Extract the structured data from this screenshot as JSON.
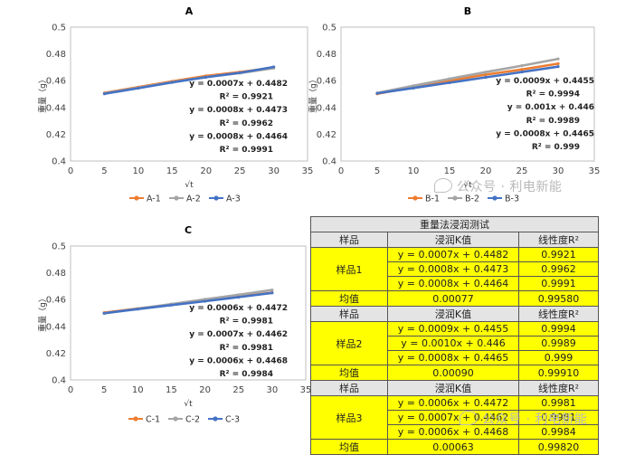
{
  "chart_data": [
    {
      "type": "scatter",
      "title": "A",
      "xlabel": "√t",
      "ylabel": "重量（g）",
      "xlim": [
        0,
        35
      ],
      "ylim": [
        0.4,
        0.5
      ],
      "xticks": [
        "0",
        "5",
        "10",
        "15",
        "20",
        "25",
        "30",
        "35"
      ],
      "yticks": [
        "0.4",
        "0.42",
        "0.44",
        "0.46",
        "0.48",
        "0.5"
      ],
      "grid": false,
      "legend": "bottom",
      "series": [
        {
          "name": "A-1",
          "color": "#ed7d31",
          "x": [
            5,
            10,
            15,
            20,
            25,
            30
          ],
          "y": [
            0.4509,
            0.4552,
            0.4595,
            0.4636,
            0.4664,
            0.4697
          ]
        },
        {
          "name": "A-2",
          "color": "#a5a5a5",
          "x": [
            5,
            10,
            15,
            20,
            25,
            30
          ],
          "y": [
            0.4505,
            0.4547,
            0.4589,
            0.4627,
            0.4657,
            0.4694
          ]
        },
        {
          "name": "A-3",
          "color": "#4472c4",
          "x": [
            5,
            10,
            15,
            20,
            25,
            30
          ],
          "y": [
            0.4502,
            0.4544,
            0.4587,
            0.4626,
            0.4659,
            0.4703
          ]
        }
      ],
      "annotations": [
        "y = 0.0007x + 0.4482",
        "R² = 0.9921",
        "y = 0.0008x + 0.4473",
        "R² = 0.9962",
        "y = 0.0008x + 0.4464",
        "R² = 0.9991"
      ]
    },
    {
      "type": "scatter",
      "title": "B",
      "xlabel": "√t",
      "ylabel": "重量（g）",
      "xlim": [
        0,
        35
      ],
      "ylim": [
        0.4,
        0.5
      ],
      "xticks": [
        "0",
        "5",
        "10",
        "15",
        "20",
        "25",
        "30",
        "35"
      ],
      "yticks": [
        "0.4",
        "0.42",
        "0.44",
        "0.46",
        "0.48",
        "0.5"
      ],
      "grid": false,
      "legend": "bottom",
      "series": [
        {
          "name": "B-1",
          "color": "#ed7d31",
          "x": [
            5,
            10,
            15,
            20,
            25,
            30
          ],
          "y": [
            0.4502,
            0.4552,
            0.46,
            0.4645,
            0.4684,
            0.4727
          ]
        },
        {
          "name": "B-2",
          "color": "#a5a5a5",
          "x": [
            5,
            10,
            15,
            20,
            25,
            30
          ],
          "y": [
            0.4508,
            0.4562,
            0.4614,
            0.4664,
            0.4712,
            0.4763
          ]
        },
        {
          "name": "B-3",
          "color": "#4472c4",
          "x": [
            5,
            10,
            15,
            20,
            25,
            30
          ],
          "y": [
            0.4506,
            0.4545,
            0.4585,
            0.4625,
            0.4665,
            0.4705
          ]
        }
      ],
      "annotations": [
        "y = 0.0009x + 0.4455",
        "R² = 0.9994",
        "y = 0.001x + 0.446",
        "R² = 0.9989",
        "y = 0.0008x + 0.4465",
        "R² = 0.999"
      ]
    },
    {
      "type": "scatter",
      "title": "C",
      "xlabel": "√t",
      "ylabel": "重量（g）",
      "xlim": [
        0,
        35
      ],
      "ylim": [
        0.4,
        0.5
      ],
      "xticks": [
        "0",
        "5",
        "10",
        "15",
        "20",
        "25",
        "30",
        "35"
      ],
      "yticks": [
        "0.4",
        "0.42",
        "0.44",
        "0.46",
        "0.48",
        "0.5"
      ],
      "grid": false,
      "legend": "bottom",
      "series": [
        {
          "name": "C-1",
          "color": "#ed7d31",
          "x": [
            5,
            10,
            15,
            20,
            25,
            30
          ],
          "y": [
            0.4502,
            0.4533,
            0.4562,
            0.4592,
            0.4621,
            0.4652
          ]
        },
        {
          "name": "C-2",
          "color": "#a5a5a5",
          "x": [
            5,
            10,
            15,
            20,
            25,
            30
          ],
          "y": [
            0.4497,
            0.4532,
            0.4567,
            0.4602,
            0.4636,
            0.4672
          ]
        },
        {
          "name": "C-3",
          "color": "#4472c4",
          "x": [
            5,
            10,
            15,
            20,
            25,
            30
          ],
          "y": [
            0.4498,
            0.4529,
            0.4559,
            0.4588,
            0.4618,
            0.465
          ]
        }
      ],
      "annotations": [
        "y = 0.0006x + 0.4472",
        "R² = 0.9981",
        "y = 0.0007x + 0.4462",
        "R² = 0.9981",
        "y = 0.0006x + 0.4468",
        "R² = 0.9984"
      ]
    }
  ],
  "table": {
    "title": "重量法浸润测试",
    "col_sample": "样品",
    "col_k": "浸润K值",
    "col_r2": "线性度R²",
    "mean_label": "均值",
    "groups": [
      {
        "name": "样品1",
        "rows": [
          [
            "y = 0.0007x + 0.4482",
            "0.9921"
          ],
          [
            "y = 0.0008x + 0.4473",
            "0.9962"
          ],
          [
            "y = 0.0008x + 0.4464",
            "0.9991"
          ]
        ],
        "mean_k": "0.00077",
        "mean_r2": "0.99580"
      },
      {
        "name": "样品2",
        "rows": [
          [
            "y = 0.0009x + 0.4455",
            "0.9994"
          ],
          [
            "y = 0.0010x + 0.446",
            "0.9989"
          ],
          [
            "y = 0.0008x + 0.4465",
            "0.999"
          ]
        ],
        "mean_k": "0.00090",
        "mean_r2": "0.99910"
      },
      {
        "name": "样品3",
        "rows": [
          [
            "y = 0.0006x + 0.4472",
            "0.9981"
          ],
          [
            "y = 0.0007x + 0.4462",
            "0.9981"
          ],
          [
            "y = 0.0006x + 0.4468",
            "0.9984"
          ]
        ],
        "mean_k": "0.00063",
        "mean_r2": "0.99820"
      }
    ]
  },
  "watermark": {
    "text": "公众号 · 利电新能",
    "icon": "wechat-icon"
  }
}
